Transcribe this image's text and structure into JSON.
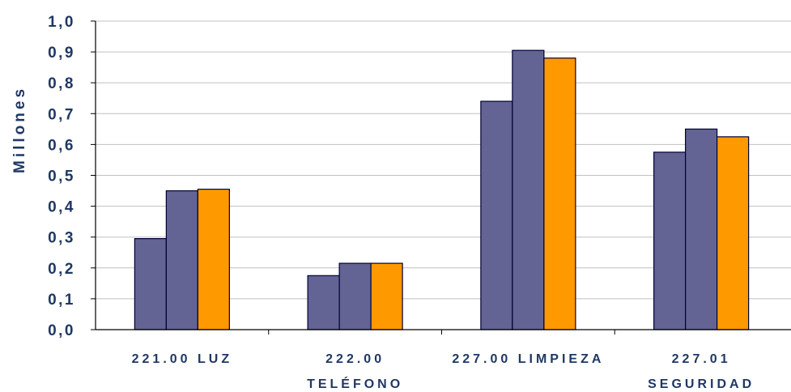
{
  "chart_data": {
    "type": "bar",
    "ylabel": "Millones",
    "categories": [
      [
        "221.00 LUZ"
      ],
      [
        "222.00",
        "TELÉFONO"
      ],
      [
        "227.00 LIMPIEZA"
      ],
      [
        "227.01",
        "SEGURIDAD"
      ]
    ],
    "series": [
      {
        "values": [
          0.295,
          0.175,
          0.74,
          0.575
        ]
      },
      {
        "values": [
          0.45,
          0.215,
          0.905,
          0.65
        ]
      },
      {
        "values": [
          0.455,
          0.215,
          0.88,
          0.625
        ]
      }
    ],
    "series_colors": [
      "#636394",
      "#636394",
      "#ff9900"
    ],
    "bar_border": "#000033",
    "ylim": [
      0,
      1.0
    ],
    "yticks": [
      "0,0",
      "0,1",
      "0,2",
      "0,3",
      "0,4",
      "0,5",
      "0,6",
      "0,7",
      "0,8",
      "0,9",
      "1,0"
    ],
    "grid": true,
    "grid_color": "#c0c0c0",
    "label_color": "#1f3864",
    "legend": "none"
  }
}
